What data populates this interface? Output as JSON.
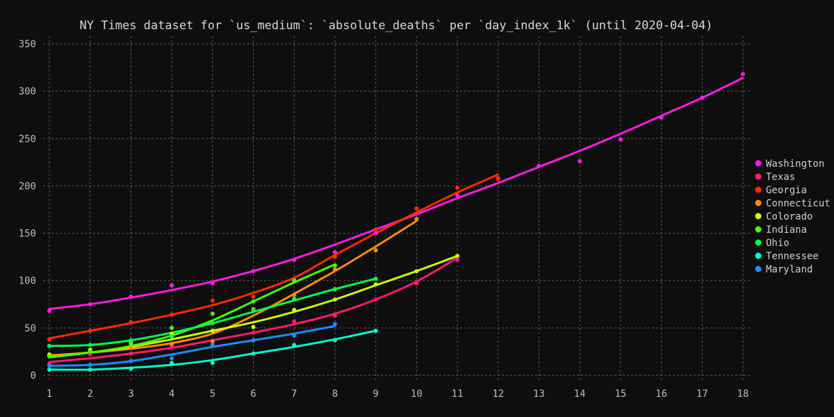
{
  "chart_data": {
    "type": "line",
    "title": "NY Times dataset for `us_medium`: `absolute_deaths` per `day_index_1k` (until 2020-04-04)",
    "xlabel": "",
    "ylabel": "",
    "xlim": [
      1,
      18
    ],
    "ylim": [
      0,
      350
    ],
    "x_ticks": [
      "1",
      "2",
      "3",
      "4",
      "5",
      "6",
      "7",
      "8",
      "9",
      "10",
      "11",
      "12",
      "13",
      "14",
      "15",
      "16",
      "17",
      "18"
    ],
    "y_ticks": [
      "0",
      "50",
      "100",
      "150",
      "200",
      "250",
      "300",
      "350"
    ],
    "grid": true,
    "legend_position": "right",
    "series": [
      {
        "name": "Washington",
        "color": "#ff1ae6",
        "points": [
          [
            1,
            68
          ],
          [
            2,
            75
          ],
          [
            3,
            83
          ],
          [
            4,
            95
          ],
          [
            5,
            97
          ],
          [
            6,
            110
          ],
          [
            7,
            122
          ],
          [
            8,
            130
          ],
          [
            9,
            150
          ],
          [
            10,
            176
          ],
          [
            11,
            190
          ],
          [
            12,
            208
          ],
          [
            13,
            221
          ],
          [
            14,
            226
          ],
          [
            15,
            249
          ],
          [
            16,
            272
          ],
          [
            17,
            293
          ],
          [
            18,
            318
          ]
        ],
        "fit": [
          [
            1,
            70
          ],
          [
            2,
            75
          ],
          [
            3,
            82
          ],
          [
            4,
            90
          ],
          [
            5,
            99
          ],
          [
            6,
            110
          ],
          [
            7,
            123
          ],
          [
            8,
            138
          ],
          [
            9,
            154
          ],
          [
            10,
            170
          ],
          [
            11,
            187
          ],
          [
            12,
            203
          ],
          [
            13,
            220
          ],
          [
            14,
            237
          ],
          [
            15,
            255
          ],
          [
            16,
            274
          ],
          [
            17,
            293
          ],
          [
            18,
            314
          ]
        ]
      },
      {
        "name": "Texas",
        "color": "#ff1a6e",
        "points": [
          [
            1,
            12
          ],
          [
            2,
            22
          ],
          [
            3,
            23
          ],
          [
            4,
            30
          ],
          [
            5,
            35
          ],
          [
            6,
            45
          ],
          [
            7,
            57
          ],
          [
            8,
            63
          ],
          [
            9,
            80
          ],
          [
            10,
            97
          ],
          [
            11,
            122
          ]
        ],
        "fit": [
          [
            1,
            14
          ],
          [
            2,
            18
          ],
          [
            3,
            23
          ],
          [
            4,
            29
          ],
          [
            5,
            37
          ],
          [
            6,
            45
          ],
          [
            7,
            54
          ],
          [
            8,
            65
          ],
          [
            9,
            80
          ],
          [
            10,
            99
          ],
          [
            11,
            124
          ]
        ]
      },
      {
        "name": "Georgia",
        "color": "#ff2a00",
        "points": [
          [
            1,
            38
          ],
          [
            2,
            47
          ],
          [
            3,
            56
          ],
          [
            4,
            64
          ],
          [
            5,
            79
          ],
          [
            6,
            83
          ],
          [
            7,
            102
          ],
          [
            8,
            125
          ],
          [
            9,
            154
          ],
          [
            10,
            176
          ],
          [
            11,
            198
          ],
          [
            12,
            207
          ]
        ],
        "fit": [
          [
            1,
            39
          ],
          [
            2,
            47
          ],
          [
            3,
            55
          ],
          [
            4,
            64
          ],
          [
            5,
            74
          ],
          [
            6,
            87
          ],
          [
            7,
            103
          ],
          [
            8,
            127
          ],
          [
            9,
            150
          ],
          [
            10,
            172
          ],
          [
            11,
            193
          ],
          [
            12,
            212
          ]
        ]
      },
      {
        "name": "Connecticut",
        "color": "#ff8c00",
        "points": [
          [
            1,
            21
          ],
          [
            2,
            26
          ],
          [
            3,
            30
          ],
          [
            4,
            33
          ],
          [
            5,
            36
          ],
          [
            6,
            69
          ],
          [
            7,
            85
          ],
          [
            8,
            112
          ],
          [
            9,
            132
          ],
          [
            10,
            165
          ]
        ],
        "fit": [
          [
            1,
            21
          ],
          [
            2,
            24
          ],
          [
            3,
            28
          ],
          [
            4,
            34
          ],
          [
            5,
            44
          ],
          [
            6,
            63
          ],
          [
            7,
            86
          ],
          [
            8,
            110
          ],
          [
            9,
            136
          ],
          [
            10,
            163
          ]
        ]
      },
      {
        "name": "Colorado",
        "color": "#ccff00",
        "points": [
          [
            1,
            22
          ],
          [
            2,
            27
          ],
          [
            3,
            35
          ],
          [
            4,
            44
          ],
          [
            5,
            47
          ],
          [
            6,
            51
          ],
          [
            7,
            69
          ],
          [
            8,
            80
          ],
          [
            9,
            96
          ],
          [
            10,
            110
          ],
          [
            11,
            126
          ]
        ],
        "fit": [
          [
            1,
            19
          ],
          [
            2,
            24
          ],
          [
            3,
            30
          ],
          [
            4,
            38
          ],
          [
            5,
            47
          ],
          [
            6,
            56
          ],
          [
            7,
            67
          ],
          [
            8,
            80
          ],
          [
            9,
            95
          ],
          [
            10,
            110
          ],
          [
            11,
            126
          ]
        ]
      },
      {
        "name": "Indiana",
        "color": "#44ff00",
        "points": [
          [
            1,
            20
          ],
          [
            2,
            25
          ],
          [
            3,
            33
          ],
          [
            4,
            50
          ],
          [
            5,
            65
          ],
          [
            6,
            78
          ],
          [
            7,
            100
          ],
          [
            8,
            116
          ]
        ],
        "fit": [
          [
            1,
            19
          ],
          [
            2,
            24
          ],
          [
            3,
            31
          ],
          [
            4,
            42
          ],
          [
            5,
            58
          ],
          [
            6,
            78
          ],
          [
            7,
            98
          ],
          [
            8,
            117
          ]
        ]
      },
      {
        "name": "Ohio",
        "color": "#00ff4c",
        "points": [
          [
            1,
            31
          ],
          [
            2,
            32
          ],
          [
            3,
            37
          ],
          [
            4,
            41
          ],
          [
            5,
            55
          ],
          [
            6,
            70
          ],
          [
            7,
            81
          ],
          [
            8,
            91
          ],
          [
            9,
            102
          ]
        ],
        "fit": [
          [
            1,
            31
          ],
          [
            2,
            32
          ],
          [
            3,
            37
          ],
          [
            4,
            45
          ],
          [
            5,
            55
          ],
          [
            6,
            67
          ],
          [
            7,
            79
          ],
          [
            8,
            91
          ],
          [
            9,
            102
          ]
        ]
      },
      {
        "name": "Tennessee",
        "color": "#00ffcc",
        "points": [
          [
            1,
            6
          ],
          [
            2,
            6
          ],
          [
            3,
            7
          ],
          [
            4,
            13
          ],
          [
            5,
            13
          ],
          [
            6,
            23
          ],
          [
            7,
            32
          ],
          [
            8,
            37
          ],
          [
            9,
            47
          ]
        ],
        "fit": [
          [
            1,
            6
          ],
          [
            2,
            6
          ],
          [
            3,
            8
          ],
          [
            4,
            11
          ],
          [
            5,
            16
          ],
          [
            6,
            23
          ],
          [
            7,
            30
          ],
          [
            8,
            38
          ],
          [
            9,
            47
          ]
        ]
      },
      {
        "name": "Maryland",
        "color": "#1a8cff",
        "points": [
          [
            1,
            10
          ],
          [
            2,
            11
          ],
          [
            3,
            15
          ],
          [
            4,
            18
          ],
          [
            5,
            32
          ],
          [
            6,
            37
          ],
          [
            7,
            42
          ],
          [
            8,
            54
          ]
        ],
        "fit": [
          [
            1,
            10
          ],
          [
            2,
            11
          ],
          [
            3,
            15
          ],
          [
            4,
            22
          ],
          [
            5,
            30
          ],
          [
            6,
            37
          ],
          [
            7,
            44
          ],
          [
            8,
            52
          ]
        ]
      }
    ]
  }
}
